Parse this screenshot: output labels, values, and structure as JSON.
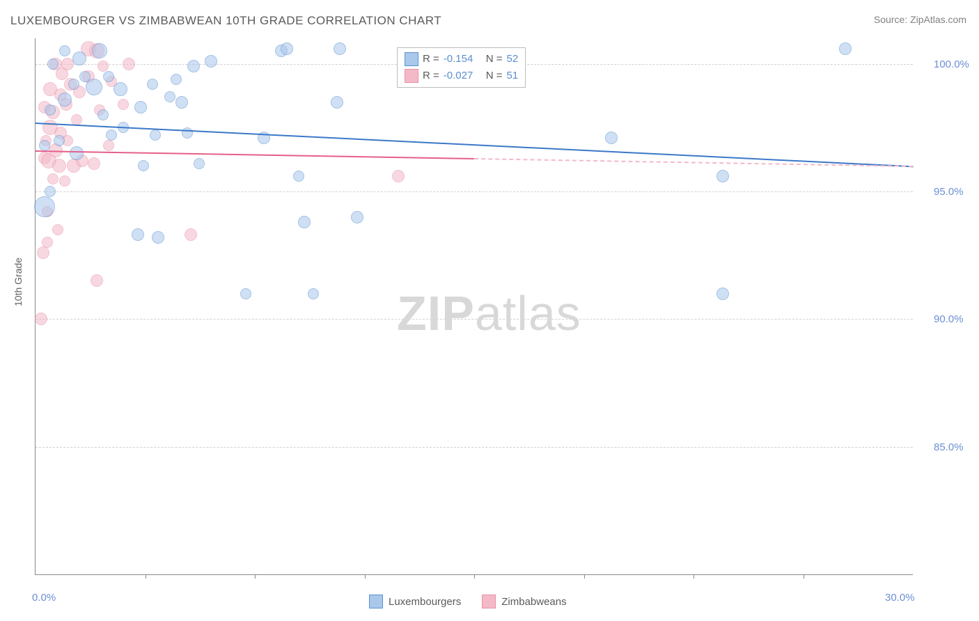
{
  "title": "LUXEMBOURGER VS ZIMBABWEAN 10TH GRADE CORRELATION CHART",
  "source": "Source: ZipAtlas.com",
  "ylabel": "10th Grade",
  "watermark_zip": "ZIP",
  "watermark_atlas": "atlas",
  "chart": {
    "type": "scatter",
    "xlim": [
      0,
      30
    ],
    "ylim": [
      80,
      101
    ],
    "x_ticks_major": [
      0,
      30
    ],
    "x_ticks_minor": [
      3.75,
      7.5,
      11.25,
      15,
      18.75,
      22.5,
      26.25
    ],
    "x_tick_labels": {
      "0": "0.0%",
      "30": "30.0%"
    },
    "y_grid": [
      85,
      90,
      95,
      100
    ],
    "y_tick_labels": {
      "85": "85.0%",
      "90": "90.0%",
      "95": "95.0%",
      "100": "100.0%"
    },
    "background_color": "#ffffff",
    "grid_color": "#d0d0d0",
    "axis_color": "#888888",
    "text_color": "#5a5a5a",
    "tick_label_color": "#6b8fd4"
  },
  "series": {
    "blue": {
      "label": "Luxembourgers",
      "fill_color": "#a9c8ec",
      "stroke_color": "#5b8fd0",
      "fill_opacity": 0.55,
      "line_color": "#3b78c9",
      "R": "-0.154",
      "N": "52",
      "trend": {
        "x1": 0,
        "y1": 97.7,
        "x2": 30,
        "y2": 96.0,
        "dashed_from": null
      },
      "points": [
        {
          "x": 0.3,
          "y": 94.4,
          "r": 14
        },
        {
          "x": 0.3,
          "y": 96.8,
          "r": 7
        },
        {
          "x": 0.5,
          "y": 95.0,
          "r": 7
        },
        {
          "x": 0.5,
          "y": 98.2,
          "r": 7
        },
        {
          "x": 0.6,
          "y": 100.0,
          "r": 7
        },
        {
          "x": 0.8,
          "y": 97.0,
          "r": 7
        },
        {
          "x": 1.0,
          "y": 98.6,
          "r": 9
        },
        {
          "x": 1.0,
          "y": 100.5,
          "r": 7
        },
        {
          "x": 1.3,
          "y": 99.2,
          "r": 7
        },
        {
          "x": 1.4,
          "y": 96.5,
          "r": 9
        },
        {
          "x": 1.5,
          "y": 100.2,
          "r": 9
        },
        {
          "x": 1.7,
          "y": 99.5,
          "r": 7
        },
        {
          "x": 2.0,
          "y": 99.1,
          "r": 11
        },
        {
          "x": 2.2,
          "y": 100.5,
          "r": 10
        },
        {
          "x": 2.3,
          "y": 98.0,
          "r": 7
        },
        {
          "x": 2.5,
          "y": 99.5,
          "r": 7
        },
        {
          "x": 2.6,
          "y": 97.2,
          "r": 7
        },
        {
          "x": 2.9,
          "y": 99.0,
          "r": 9
        },
        {
          "x": 3.0,
          "y": 97.5,
          "r": 7
        },
        {
          "x": 3.5,
          "y": 93.3,
          "r": 8
        },
        {
          "x": 3.6,
          "y": 98.3,
          "r": 8
        },
        {
          "x": 3.7,
          "y": 96.0,
          "r": 7
        },
        {
          "x": 4.0,
          "y": 99.2,
          "r": 7
        },
        {
          "x": 4.1,
          "y": 97.2,
          "r": 7
        },
        {
          "x": 4.2,
          "y": 93.2,
          "r": 8
        },
        {
          "x": 4.6,
          "y": 98.7,
          "r": 7
        },
        {
          "x": 4.8,
          "y": 99.4,
          "r": 7
        },
        {
          "x": 5.0,
          "y": 98.5,
          "r": 8
        },
        {
          "x": 5.2,
          "y": 97.3,
          "r": 7
        },
        {
          "x": 5.4,
          "y": 99.9,
          "r": 8
        },
        {
          "x": 5.6,
          "y": 96.1,
          "r": 7
        },
        {
          "x": 6.0,
          "y": 100.1,
          "r": 8
        },
        {
          "x": 7.2,
          "y": 91.0,
          "r": 7
        },
        {
          "x": 7.8,
          "y": 97.1,
          "r": 8
        },
        {
          "x": 8.4,
          "y": 100.5,
          "r": 8
        },
        {
          "x": 8.6,
          "y": 100.6,
          "r": 8
        },
        {
          "x": 9.0,
          "y": 95.6,
          "r": 7
        },
        {
          "x": 9.2,
          "y": 93.8,
          "r": 8
        },
        {
          "x": 9.5,
          "y": 91.0,
          "r": 7
        },
        {
          "x": 10.3,
          "y": 98.5,
          "r": 8
        },
        {
          "x": 10.4,
          "y": 100.6,
          "r": 8
        },
        {
          "x": 11.0,
          "y": 94.0,
          "r": 8
        },
        {
          "x": 19.7,
          "y": 97.1,
          "r": 8
        },
        {
          "x": 23.5,
          "y": 95.6,
          "r": 8
        },
        {
          "x": 23.5,
          "y": 91.0,
          "r": 8
        },
        {
          "x": 27.7,
          "y": 100.6,
          "r": 8
        }
      ]
    },
    "pink": {
      "label": "Zimbabweans",
      "fill_color": "#f4b9c7",
      "stroke_color": "#e890a8",
      "fill_opacity": 0.55,
      "line_color": "#e65f88",
      "R": "-0.027",
      "N": "51",
      "trend": {
        "x1": 0,
        "y1": 96.6,
        "x2": 30,
        "y2": 96.0,
        "dashed_from": 15
      },
      "points": [
        {
          "x": 0.2,
          "y": 90.0,
          "r": 8
        },
        {
          "x": 0.25,
          "y": 92.6,
          "r": 8
        },
        {
          "x": 0.3,
          "y": 96.3,
          "r": 8
        },
        {
          "x": 0.3,
          "y": 98.3,
          "r": 8
        },
        {
          "x": 0.35,
          "y": 97.0,
          "r": 7
        },
        {
          "x": 0.4,
          "y": 93.0,
          "r": 7
        },
        {
          "x": 0.4,
          "y": 94.2,
          "r": 7
        },
        {
          "x": 0.45,
          "y": 96.2,
          "r": 10
        },
        {
          "x": 0.5,
          "y": 99.0,
          "r": 9
        },
        {
          "x": 0.5,
          "y": 97.5,
          "r": 10
        },
        {
          "x": 0.6,
          "y": 95.5,
          "r": 7
        },
        {
          "x": 0.6,
          "y": 98.1,
          "r": 9
        },
        {
          "x": 0.7,
          "y": 96.6,
          "r": 9
        },
        {
          "x": 0.7,
          "y": 100.0,
          "r": 8
        },
        {
          "x": 0.75,
          "y": 93.5,
          "r": 7
        },
        {
          "x": 0.8,
          "y": 96.0,
          "r": 9
        },
        {
          "x": 0.85,
          "y": 98.8,
          "r": 8
        },
        {
          "x": 0.85,
          "y": 97.3,
          "r": 8
        },
        {
          "x": 0.9,
          "y": 99.6,
          "r": 8
        },
        {
          "x": 1.0,
          "y": 95.4,
          "r": 7
        },
        {
          "x": 1.05,
          "y": 98.4,
          "r": 8
        },
        {
          "x": 1.1,
          "y": 97.0,
          "r": 7
        },
        {
          "x": 1.1,
          "y": 100.0,
          "r": 8
        },
        {
          "x": 1.2,
          "y": 99.2,
          "r": 8
        },
        {
          "x": 1.3,
          "y": 96.0,
          "r": 9
        },
        {
          "x": 1.4,
          "y": 97.8,
          "r": 7
        },
        {
          "x": 1.5,
          "y": 98.9,
          "r": 8
        },
        {
          "x": 1.6,
          "y": 96.2,
          "r": 8
        },
        {
          "x": 1.8,
          "y": 100.6,
          "r": 10
        },
        {
          "x": 1.8,
          "y": 99.5,
          "r": 8
        },
        {
          "x": 2.0,
          "y": 96.1,
          "r": 8
        },
        {
          "x": 2.1,
          "y": 100.5,
          "r": 10
        },
        {
          "x": 2.1,
          "y": 91.5,
          "r": 8
        },
        {
          "x": 2.2,
          "y": 98.2,
          "r": 7
        },
        {
          "x": 2.3,
          "y": 99.9,
          "r": 7
        },
        {
          "x": 2.5,
          "y": 96.8,
          "r": 7
        },
        {
          "x": 2.6,
          "y": 99.3,
          "r": 7
        },
        {
          "x": 3.0,
          "y": 98.4,
          "r": 7
        },
        {
          "x": 3.2,
          "y": 100.0,
          "r": 8
        },
        {
          "x": 5.3,
          "y": 93.3,
          "r": 8
        },
        {
          "x": 12.4,
          "y": 95.6,
          "r": 8
        }
      ]
    }
  },
  "legend_top": {
    "R_label": "R =",
    "N_label": "N ="
  },
  "legend_bottom": {
    "blue": "Luxembourgers",
    "pink": "Zimbabweans"
  }
}
